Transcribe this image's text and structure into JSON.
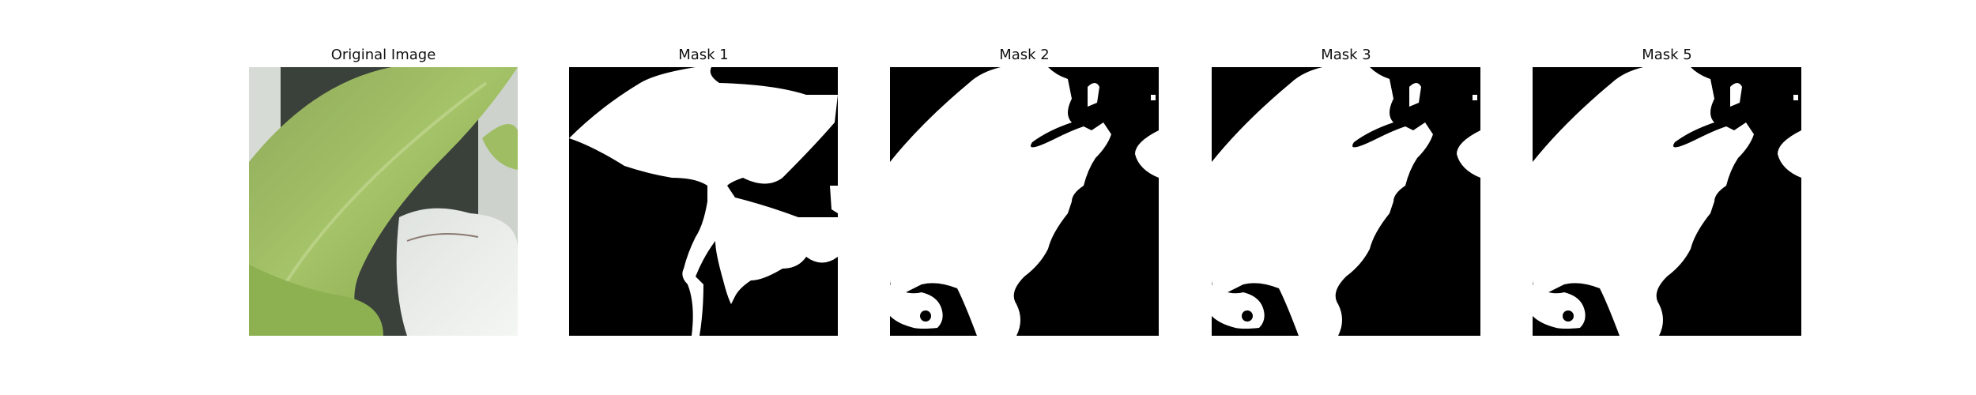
{
  "figure": {
    "panels": [
      {
        "title": "Original Image",
        "kind": "photo"
      },
      {
        "title": "Mask 1",
        "kind": "mask"
      },
      {
        "title": "Mask 2",
        "kind": "mask"
      },
      {
        "title": "Mask 3",
        "kind": "mask"
      },
      {
        "title": "Mask 5",
        "kind": "mask"
      }
    ]
  },
  "colors": {
    "background": "#ffffff",
    "mask_foreground": "#ffffff",
    "mask_background": "#000000",
    "leaf_light": "#a9c869",
    "leaf_dark": "#6f9138",
    "pot_white": "#e9ece8",
    "soil_dark": "#2b2f2d"
  }
}
